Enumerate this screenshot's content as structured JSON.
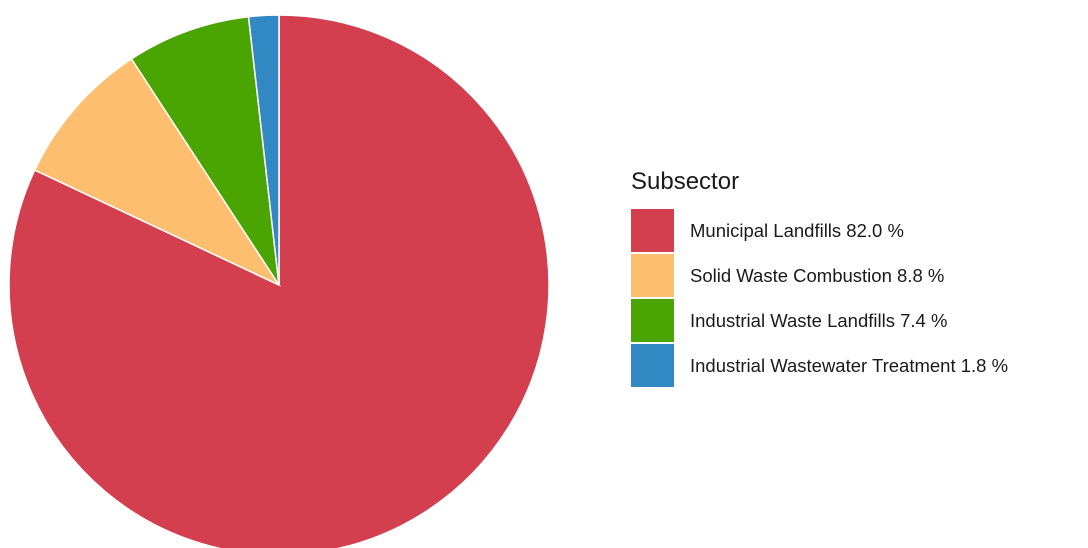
{
  "chart_data": {
    "type": "pie",
    "legend": {
      "title": "Subsector",
      "placement": "right"
    },
    "slices": [
      {
        "label": "Municipal Landfills 82.0 %",
        "value": 82.0,
        "color": "#d43f4f"
      },
      {
        "label": "Solid Waste Combustion 8.8 %",
        "value": 8.8,
        "color": "#fdbf6f"
      },
      {
        "label": "Industrial Waste Landfills 7.4 %",
        "value": 7.4,
        "color": "#4aa502"
      },
      {
        "label": "Industrial Wastewater Treatment 1.8 %",
        "value": 1.8,
        "color": "#3188c2"
      }
    ]
  }
}
